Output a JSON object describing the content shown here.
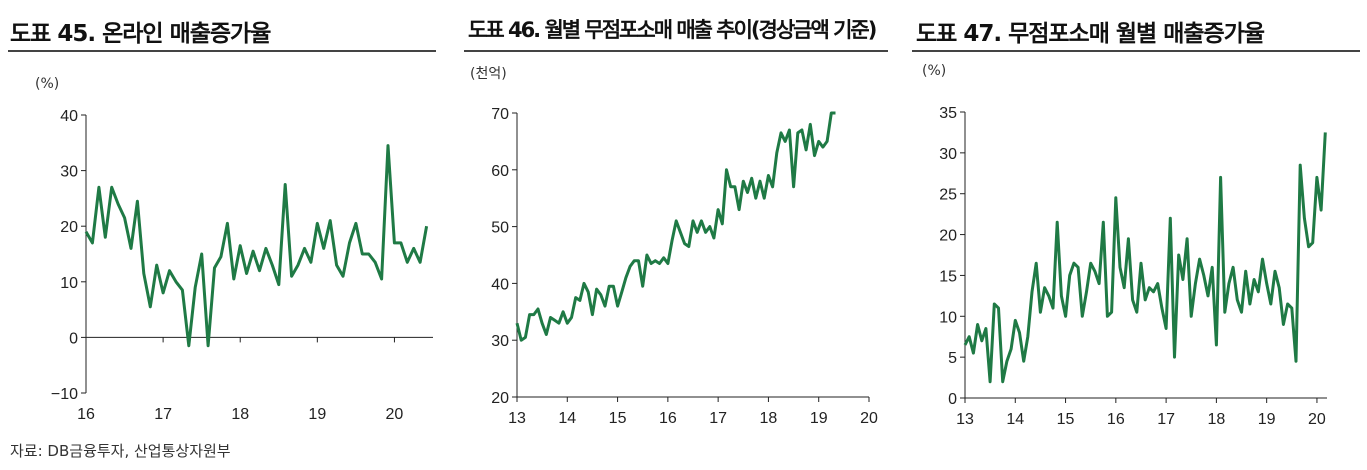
{
  "source": "자료: DB금융투자, 산업통상자원부",
  "charts": [
    {
      "title": "도표 45. 온라인 매출증가율",
      "unit": "(%)",
      "chart_data": {
        "type": "line",
        "color": "#1f7a45",
        "ylim": [
          -10,
          40
        ],
        "yticks": [
          -10,
          0,
          10,
          20,
          30,
          40
        ],
        "ytick_labels": [
          "−10",
          "0",
          "10",
          "20",
          "30",
          "40"
        ],
        "xlim": [
          2016,
          2020.5
        ],
        "xticks": [
          16,
          17,
          18,
          19,
          20
        ],
        "x_start": 2016,
        "x_step": 0.08333,
        "values": [
          19,
          17,
          27,
          18,
          27,
          24,
          21.5,
          16,
          24.5,
          11.5,
          5.5,
          13,
          8,
          12,
          10,
          8.5,
          -1.5,
          9,
          15,
          -1.5,
          12.5,
          14.5,
          20.5,
          10.5,
          16.5,
          11.5,
          15.5,
          12,
          16,
          13,
          9.5,
          27.5,
          11,
          13,
          16,
          13.5,
          20.5,
          16,
          21,
          13,
          11,
          17,
          20.5,
          15,
          15,
          13.5,
          10.5,
          34.5,
          17,
          17,
          13.5,
          16,
          13.5,
          20
        ]
      }
    },
    {
      "title": "도표 46. 월별 무점포소매 매출 추이(경상금액 기준)",
      "unit": "(천억)",
      "chart_data": {
        "type": "line",
        "color": "#1f7a45",
        "ylim": [
          20,
          70
        ],
        "yticks": [
          20,
          30,
          40,
          50,
          60,
          70
        ],
        "ytick_labels": [
          "20",
          "30",
          "40",
          "50",
          "60",
          "70"
        ],
        "xlim": [
          2013,
          2020
        ],
        "xticks": [
          13,
          14,
          15,
          16,
          17,
          18,
          19,
          20
        ],
        "x_start": 2013,
        "x_step": 0.08333,
        "values": [
          33,
          30,
          30.5,
          34.5,
          34.5,
          35.5,
          33,
          31,
          34,
          33.5,
          33,
          35,
          33,
          34,
          37.5,
          37,
          40,
          38.5,
          34.5,
          39,
          38,
          36,
          39.5,
          39.5,
          36,
          38.5,
          41,
          43,
          44,
          44,
          39.5,
          45,
          43.5,
          44,
          43.5,
          44.5,
          43.5,
          47.5,
          51,
          49,
          47,
          46.5,
          51,
          49,
          51,
          49,
          50,
          48,
          53,
          50.5,
          60,
          57,
          57,
          53,
          58,
          56,
          58.5,
          55,
          58,
          55,
          59,
          57,
          63,
          66.5,
          65,
          67,
          57,
          66.5,
          67,
          63.5,
          68,
          62.5,
          65,
          64,
          65,
          70,
          70
        ]
      }
    },
    {
      "title": "도표 47. 무점포소매 월별 매출증가율",
      "unit": "(%)",
      "chart_data": {
        "type": "line",
        "color": "#1f7a45",
        "ylim": [
          0,
          35
        ],
        "yticks": [
          0,
          5,
          10,
          15,
          20,
          25,
          30,
          35
        ],
        "ytick_labels": [
          "0",
          "5",
          "10",
          "15",
          "20",
          "25",
          "30",
          "35"
        ],
        "xlim": [
          2013,
          2020.2
        ],
        "xticks": [
          13,
          14,
          15,
          16,
          17,
          18,
          19,
          20
        ],
        "x_start": 2013,
        "x_step": 0.08333,
        "values": [
          6.5,
          7.5,
          5.5,
          9,
          7,
          8.5,
          2,
          11.5,
          11,
          2,
          4.5,
          6,
          9.5,
          8,
          4.5,
          7.5,
          13,
          16.5,
          10.5,
          13.5,
          12.5,
          11,
          21.5,
          12.5,
          10,
          15,
          16.5,
          16,
          10,
          13,
          16.5,
          15.5,
          14,
          21.5,
          10,
          10.5,
          24.5,
          16,
          13.5,
          19.5,
          12,
          10.5,
          16.5,
          12,
          13.5,
          13,
          14,
          11,
          8.5,
          22,
          5,
          17.5,
          14.5,
          19.5,
          10,
          14,
          17,
          15,
          12.5,
          16,
          6.5,
          27,
          10.5,
          14,
          16,
          12,
          10.5,
          15.5,
          11.5,
          14.5,
          13,
          17,
          14,
          11.5,
          15.5,
          13.5,
          9,
          11.5,
          11,
          4.5,
          28.5,
          22,
          18.5,
          19,
          27,
          23,
          32.5
        ]
      }
    }
  ]
}
